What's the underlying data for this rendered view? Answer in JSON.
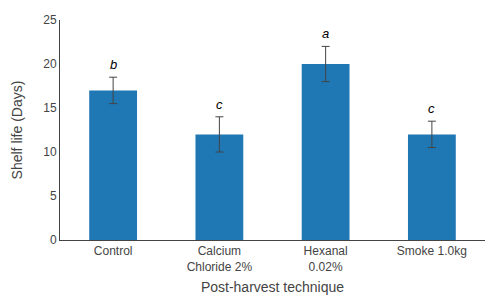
{
  "chart_data": {
    "type": "bar",
    "categories": [
      "Control",
      "Calcium\nChloride 2%",
      "Hexanal\n0.02%",
      "Smoke 1.0kg"
    ],
    "values": [
      17.0,
      12.0,
      20.0,
      12.0
    ],
    "errors": [
      1.5,
      2.0,
      2.0,
      1.5
    ],
    "annotations": [
      "b",
      "c",
      "a",
      "c"
    ],
    "xlabel": "Post-harvest technique",
    "ylabel": "Shelf life (Days)",
    "ylim": [
      0,
      25
    ],
    "yticks": [
      0,
      5,
      10,
      15,
      20,
      25
    ],
    "grid": false
  }
}
